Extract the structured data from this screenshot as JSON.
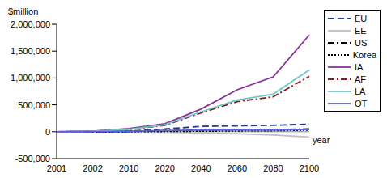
{
  "chart_data": {
    "type": "line",
    "y_label": "$million",
    "x_label": "year",
    "categories": [
      "2001",
      "2002",
      "2010",
      "2020",
      "2040",
      "2060",
      "2080",
      "2100"
    ],
    "ylim": [
      -500000,
      2000000
    ],
    "yticks": [
      {
        "value": -500000,
        "label": "-500,000"
      },
      0,
      {
        "value": 500000,
        "label": "500,000"
      },
      {
        "value": 1000000,
        "label": "1,000,000"
      },
      {
        "value": 1500000,
        "label": "1,500,000"
      },
      {
        "value": 2000000,
        "label": "2,000,000"
      }
    ],
    "grid": false,
    "legend": "right",
    "series": [
      {
        "name": "EU",
        "color": "#1f3a93",
        "line_style": "dashed",
        "values": [
          0,
          2000,
          10000,
          50000,
          100000,
          110000,
          120000,
          140000
        ]
      },
      {
        "name": "EE",
        "color": "#c0c0c0",
        "line_style": "solid",
        "values": [
          0,
          0,
          0,
          -10000,
          -20000,
          -40000,
          -60000,
          -100000
        ]
      },
      {
        "name": "US",
        "color": "#000000",
        "line_style": "dashdot",
        "values": [
          0,
          0,
          5000,
          20000,
          30000,
          40000,
          40000,
          50000
        ]
      },
      {
        "name": "Korea",
        "color": "#000000",
        "line_style": "dotted",
        "values": [
          0,
          0,
          2000,
          5000,
          10000,
          15000,
          20000,
          30000
        ]
      },
      {
        "name": "IA",
        "color": "#8b2f9c",
        "line_style": "solid",
        "values": [
          0,
          10000,
          60000,
          150000,
          420000,
          780000,
          1020000,
          1800000
        ]
      },
      {
        "name": "AF",
        "color": "#8b1a1a",
        "line_style": "dashdot",
        "values": [
          0,
          8000,
          40000,
          120000,
          350000,
          560000,
          650000,
          1030000
        ]
      },
      {
        "name": "LA",
        "color": "#70c8c8",
        "line_style": "solid",
        "values": [
          0,
          8000,
          45000,
          130000,
          370000,
          590000,
          700000,
          1150000
        ]
      },
      {
        "name": "OT",
        "color": "#6060e0",
        "line_style": "solid",
        "values": [
          0,
          2000,
          10000,
          20000,
          30000,
          30000,
          30000,
          40000
        ]
      }
    ]
  }
}
